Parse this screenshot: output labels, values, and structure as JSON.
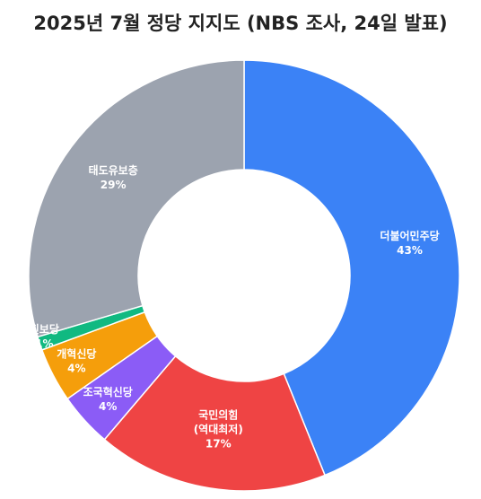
{
  "chart_data": {
    "type": "pie",
    "title": "2025년 7월 정당 지지도 (NBS 조사, 24일 발표)",
    "slices": [
      {
        "name": "더불어민주당",
        "label_lines": [
          "더불어민주당"
        ],
        "value": 43,
        "value_label": "43%",
        "color": "#3b82f6"
      },
      {
        "name": "국민의힘 (역대최저)",
        "label_lines": [
          "국민의힘",
          "(역대최저)"
        ],
        "value": 17,
        "value_label": "17%",
        "color": "#ef4444"
      },
      {
        "name": "조국혁신당",
        "label_lines": [
          "조국혁신당"
        ],
        "value": 4,
        "value_label": "4%",
        "color": "#8b5cf6"
      },
      {
        "name": "개혁신당",
        "label_lines": [
          "개혁신당"
        ],
        "value": 4,
        "value_label": "4%",
        "color": "#f59e0b"
      },
      {
        "name": "진보당",
        "label_lines": [
          "진보당"
        ],
        "value": 1,
        "value_label": "1%",
        "color": "#10b981"
      },
      {
        "name": "태도유보층",
        "label_lines": [
          "태도유보층"
        ],
        "value": 29,
        "value_label": "29%",
        "color": "#9ca3af"
      }
    ]
  }
}
